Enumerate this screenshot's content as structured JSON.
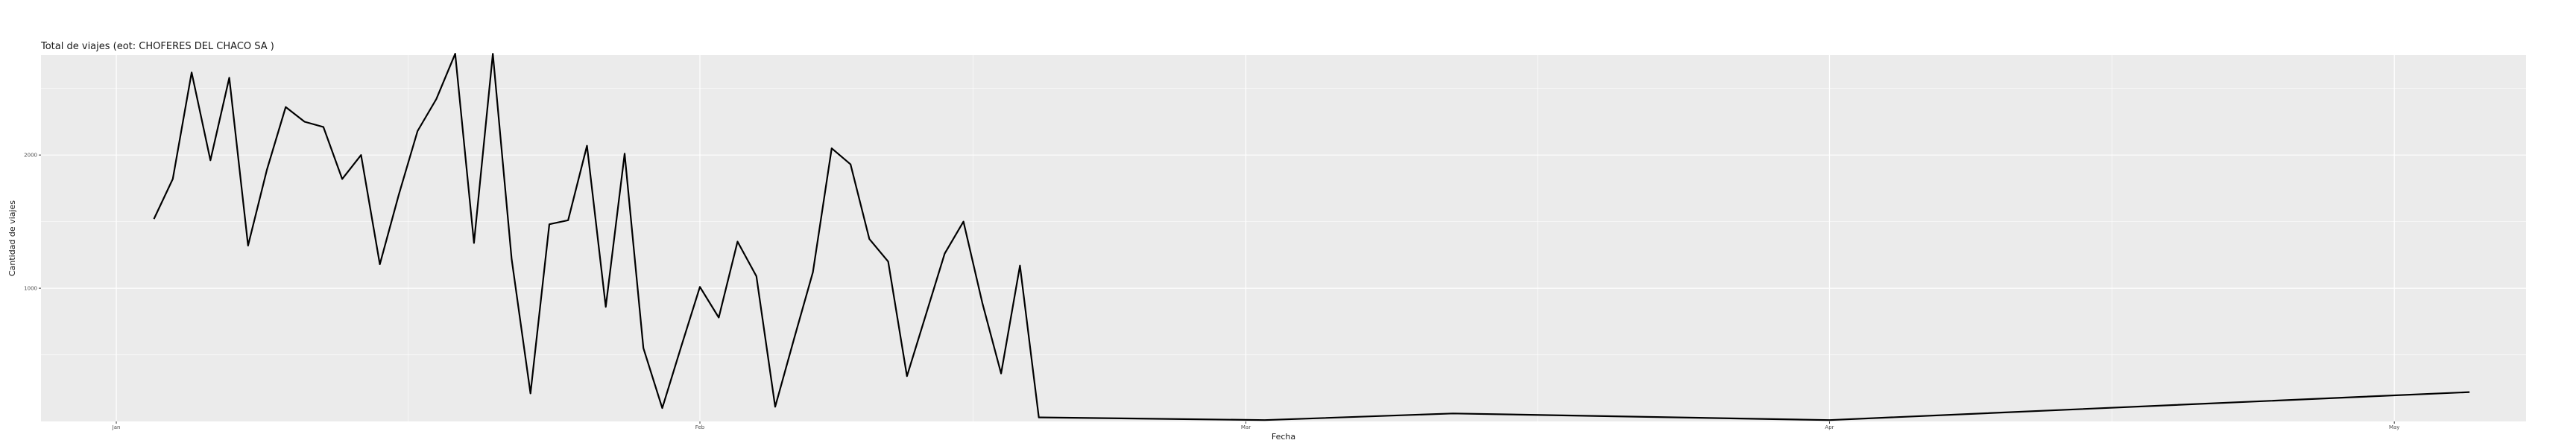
{
  "chart_data": {
    "type": "line",
    "title": "Total de viajes (eot: CHOFERES DEL CHACO SA )",
    "xlabel": "Fecha",
    "ylabel": "Cantidad de viajes",
    "x_axis": "date",
    "x_ticks": [
      {
        "date": "2020-01-01",
        "label": "Jan"
      },
      {
        "date": "2020-02-01",
        "label": "Feb"
      },
      {
        "date": "2020-03-01",
        "label": "Mar"
      },
      {
        "date": "2020-04-01",
        "label": "Apr"
      },
      {
        "date": "2020-05-01",
        "label": "May"
      }
    ],
    "y_ticks": [
      1000,
      2000
    ],
    "xlim": [
      "2019-12-28",
      "2020-05-08"
    ],
    "ylim": [
      0,
      2750
    ],
    "grid": true,
    "background_color": "#EBEBEB",
    "gridline_color": "#FFFFFF",
    "line_color": "#000000",
    "series": [
      {
        "x": [
          "2020-01-03",
          "2020-01-04",
          "2020-01-05",
          "2020-01-06",
          "2020-01-07",
          "2020-01-08",
          "2020-01-09",
          "2020-01-10",
          "2020-01-11",
          "2020-01-12",
          "2020-01-13",
          "2020-01-14",
          "2020-01-15",
          "2020-01-16",
          "2020-01-17",
          "2020-01-18",
          "2020-01-19",
          "2020-01-20",
          "2020-01-21",
          "2020-01-22",
          "2020-01-23",
          "2020-01-24",
          "2020-01-25",
          "2020-01-26",
          "2020-01-27",
          "2020-01-28",
          "2020-01-29",
          "2020-01-30",
          "2020-01-31",
          "2020-02-01",
          "2020-02-02",
          "2020-02-03",
          "2020-02-04",
          "2020-02-05",
          "2020-02-06",
          "2020-02-07",
          "2020-02-08",
          "2020-02-09",
          "2020-02-10",
          "2020-02-11",
          "2020-02-12",
          "2020-02-13",
          "2020-02-14",
          "2020-02-15",
          "2020-02-16",
          "2020-02-17",
          "2020-02-18",
          "2020-02-19",
          "2020-03-02",
          "2020-03-12",
          "2020-04-01",
          "2020-05-05"
        ],
        "y": [
          1520,
          1820,
          2620,
          1960,
          2580,
          1320,
          1890,
          2360,
          2250,
          2210,
          1820,
          2000,
          1180,
          1700,
          2180,
          2420,
          2760,
          1340,
          2760,
          1220,
          210,
          1480,
          1510,
          2070,
          860,
          2010,
          550,
          100,
          560,
          1010,
          780,
          1350,
          1090,
          110,
          620,
          1120,
          2050,
          1930,
          1370,
          1200,
          340,
          800,
          1260,
          1500,
          890,
          360,
          1170,
          30,
          10,
          60,
          10,
          220
        ]
      }
    ]
  }
}
